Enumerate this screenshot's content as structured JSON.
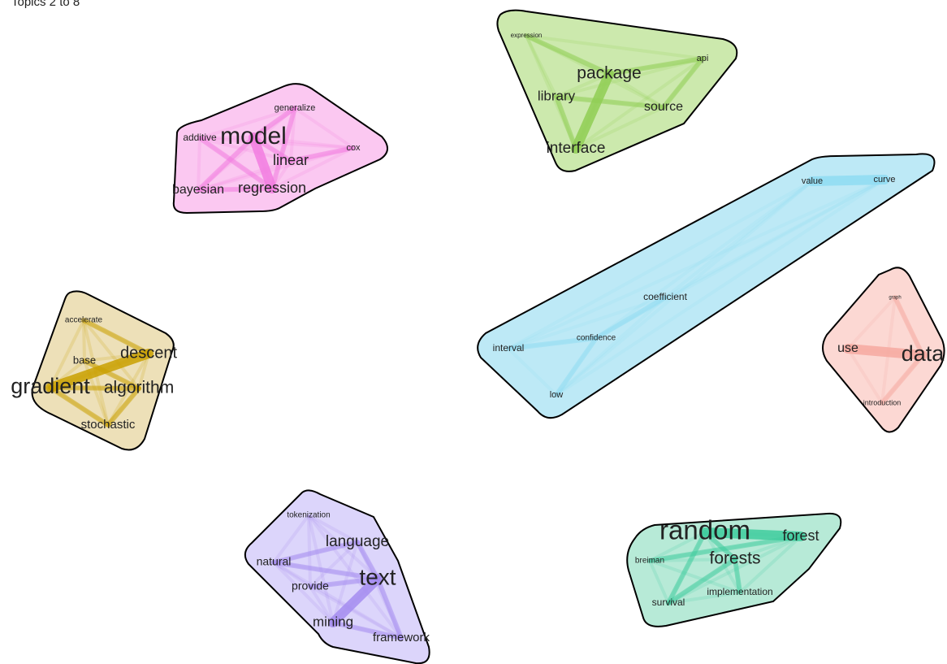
{
  "title": "Topics 2 to 8",
  "groups": [
    {
      "id": "model",
      "color": "#f27ce0",
      "fill": "#fbc8f1",
      "words": [
        "model",
        "generalize",
        "additive",
        "cox",
        "linear",
        "bayesian",
        "regression"
      ],
      "edges": [
        [
          "model",
          "regression"
        ],
        [
          "model",
          "linear"
        ],
        [
          "model",
          "generalize"
        ],
        [
          "linear",
          "cox"
        ],
        [
          "additive",
          "regression"
        ],
        [
          "bayesian",
          "regression"
        ],
        [
          "generalize",
          "regression"
        ],
        [
          "model",
          "bayesian"
        ]
      ]
    },
    {
      "id": "package",
      "color": "#8fce54",
      "fill": "#cce9ad",
      "words": [
        "expression",
        "api",
        "package",
        "library",
        "source",
        "interface"
      ],
      "edges": [
        [
          "package",
          "interface"
        ],
        [
          "package",
          "api"
        ],
        [
          "library",
          "source"
        ],
        [
          "expression",
          "package"
        ],
        [
          "library",
          "interface"
        ],
        [
          "source",
          "api"
        ]
      ]
    },
    {
      "id": "value",
      "color": "#8fdcf2",
      "fill": "#bde9f6",
      "words": [
        "value",
        "curve",
        "coefficient",
        "interval",
        "confidence",
        "low"
      ],
      "edges": [
        [
          "value",
          "curve"
        ],
        [
          "interval",
          "confidence"
        ],
        [
          "confidence",
          "coefficient"
        ],
        [
          "confidence",
          "low"
        ]
      ]
    },
    {
      "id": "data",
      "color": "#f6a9a0",
      "fill": "#fcd8d3",
      "words": [
        "graph",
        "use",
        "data",
        "introduction"
      ],
      "edges": [
        [
          "use",
          "data"
        ],
        [
          "data",
          "introduction"
        ],
        [
          "graph",
          "data"
        ]
      ]
    },
    {
      "id": "gradient",
      "color": "#c9a000",
      "fill": "#ede0b8",
      "words": [
        "accelerate",
        "base",
        "descent",
        "gradient",
        "algorithm",
        "stochastic"
      ],
      "edges": [
        [
          "gradient",
          "descent"
        ],
        [
          "gradient",
          "algorithm"
        ],
        [
          "gradient",
          "stochastic"
        ],
        [
          "accelerate",
          "descent"
        ],
        [
          "base",
          "algorithm"
        ],
        [
          "stochastic",
          "algorithm"
        ]
      ]
    },
    {
      "id": "text",
      "color": "#a48cf0",
      "fill": "#dcd5fb",
      "words": [
        "tokenization",
        "language",
        "natural",
        "provide",
        "text",
        "mining",
        "framework"
      ],
      "edges": [
        [
          "text",
          "mining"
        ],
        [
          "natural",
          "language"
        ],
        [
          "text",
          "language"
        ],
        [
          "text",
          "framework"
        ],
        [
          "provide",
          "text"
        ],
        [
          "mining",
          "framework"
        ],
        [
          "natural",
          "text"
        ]
      ]
    },
    {
      "id": "random",
      "color": "#3fcc9e",
      "fill": "#b7ead7",
      "words": [
        "random",
        "forest",
        "breiman",
        "forests",
        "survival",
        "implementation"
      ],
      "edges": [
        [
          "random",
          "forest"
        ],
        [
          "random",
          "forests"
        ],
        [
          "forests",
          "implementation"
        ],
        [
          "breiman",
          "forest"
        ],
        [
          "survival",
          "forests"
        ],
        [
          "survival",
          "random"
        ]
      ]
    }
  ]
}
